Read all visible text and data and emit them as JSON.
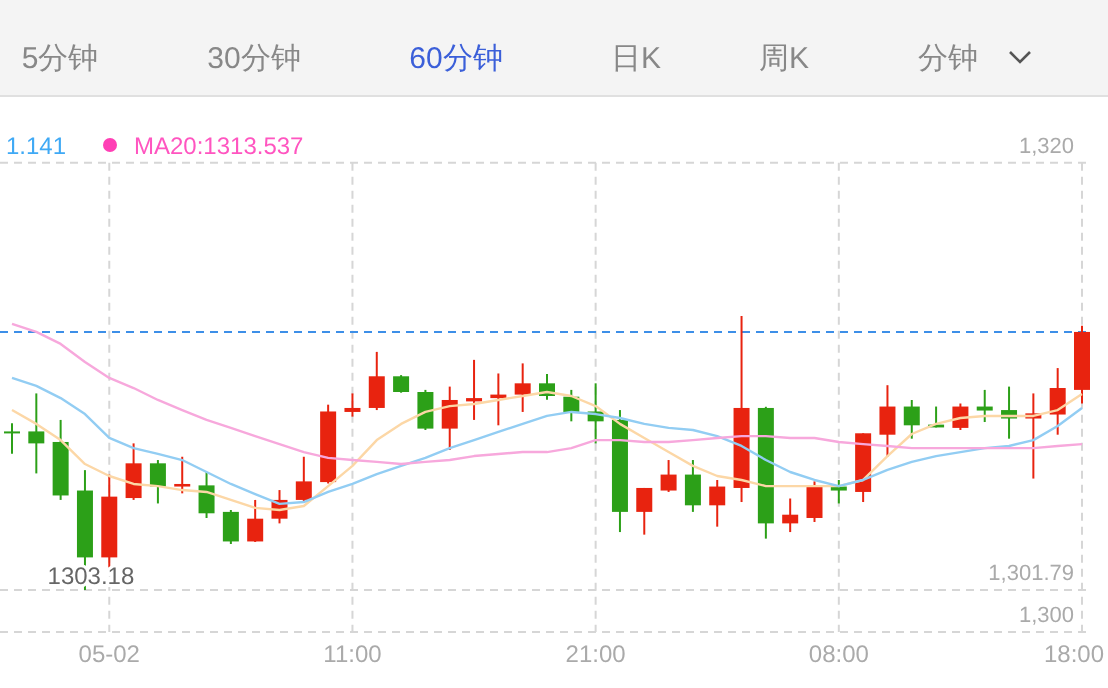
{
  "chart_data": {
    "type": "candlestick",
    "categories": [
      null,
      null,
      null,
      null,
      "05-02",
      null,
      null,
      null,
      null,
      null,
      null,
      null,
      null,
      null,
      "11:00",
      null,
      null,
      null,
      null,
      null,
      null,
      null,
      null,
      null,
      "21:00",
      null,
      null,
      null,
      null,
      null,
      null,
      null,
      null,
      null,
      "08:00",
      null,
      null,
      null,
      null,
      null,
      null,
      null,
      null,
      null,
      "18:00"
    ],
    "ohlc": [
      [
        1308.55,
        1308.9,
        1307.6,
        1308.5
      ],
      [
        1308.55,
        1310.17,
        1306.76,
        1308.04
      ],
      [
        1308.1,
        1309.04,
        1305.63,
        1305.82
      ],
      [
        1306.03,
        1306.9,
        1301.79,
        1303.18
      ],
      [
        1303.18,
        1306.71,
        1302.5,
        1305.77
      ],
      [
        1305.71,
        1308.04,
        1305.63,
        1307.19
      ],
      [
        1307.19,
        1307.33,
        1305.48,
        1306.2
      ],
      [
        1306.2,
        1307.47,
        1305.91,
        1306.31
      ],
      [
        1306.25,
        1306.82,
        1304.86,
        1305.06
      ],
      [
        1305.12,
        1305.2,
        1303.75,
        1303.86
      ],
      [
        1303.86,
        1305.63,
        1303.84,
        1304.83
      ],
      [
        1304.83,
        1306.05,
        1304.63,
        1305.63
      ],
      [
        1305.63,
        1307.47,
        1305.57,
        1306.42
      ],
      [
        1306.39,
        1309.69,
        1306.33,
        1309.4
      ],
      [
        1309.38,
        1310.17,
        1309.18,
        1309.55
      ],
      [
        1309.55,
        1311.94,
        1309.46,
        1310.9
      ],
      [
        1310.9,
        1310.95,
        1310.2,
        1310.23
      ],
      [
        1310.23,
        1310.32,
        1308.61,
        1308.67
      ],
      [
        1308.67,
        1310.46,
        1307.76,
        1309.89
      ],
      [
        1309.83,
        1311.6,
        1309.04,
        1309.97
      ],
      [
        1309.97,
        1311.02,
        1308.81,
        1310.12
      ],
      [
        1310.12,
        1311.45,
        1309.38,
        1310.6
      ],
      [
        1310.6,
        1311.0,
        1309.9,
        1310.06
      ],
      [
        1310.03,
        1310.32,
        1308.98,
        1309.38
      ],
      [
        1309.4,
        1310.6,
        1308.04,
        1308.98
      ],
      [
        1309.04,
        1309.46,
        1304.26,
        1305.12
      ],
      [
        1305.12,
        1306.14,
        1304.15,
        1306.14
      ],
      [
        1306.03,
        1307.33,
        1305.97,
        1306.71
      ],
      [
        1306.71,
        1307.33,
        1305.12,
        1305.4
      ],
      [
        1305.4,
        1306.48,
        1304.49,
        1306.2
      ],
      [
        1306.14,
        1313.47,
        1305.54,
        1309.55
      ],
      [
        1309.55,
        1309.6,
        1303.98,
        1304.63
      ],
      [
        1304.63,
        1305.69,
        1304.26,
        1305.0
      ],
      [
        1304.86,
        1306.42,
        1304.69,
        1306.2
      ],
      [
        1306.2,
        1306.48,
        1305.48,
        1306.03
      ],
      [
        1305.97,
        1308.47,
        1305.54,
        1308.47
      ],
      [
        1308.41,
        1310.52,
        1307.47,
        1309.61
      ],
      [
        1309.61,
        1309.89,
        1308.24,
        1308.81
      ],
      [
        1308.84,
        1309.61,
        1308.72,
        1308.72
      ],
      [
        1308.7,
        1309.74,
        1308.61,
        1309.61
      ],
      [
        1309.61,
        1310.32,
        1308.95,
        1309.44
      ],
      [
        1309.46,
        1310.46,
        1308.24,
        1309.1
      ],
      [
        1309.1,
        1310.17,
        1306.54,
        1309.32
      ],
      [
        1309.27,
        1311.25,
        1308.41,
        1310.4
      ],
      [
        1310.32,
        1313.05,
        1309.74,
        1312.79
      ]
    ],
    "series": [
      {
        "type": "line",
        "color": "#fcd7a6",
        "values": [
          1309.46,
          1308.87,
          1308.18,
          1307.16,
          1306.65,
          1306.31,
          1306.22,
          1306.05,
          1305.97,
          1305.63,
          1305.29,
          1305.2,
          1305.37,
          1306.22,
          1307.08,
          1308.18,
          1308.87,
          1309.38,
          1309.63,
          1309.72,
          1309.89,
          1310.06,
          1310.23,
          1310.06,
          1309.63,
          1308.87,
          1308.27,
          1307.67,
          1307.08,
          1306.65,
          1306.48,
          1306.22,
          1306.22,
          1306.22,
          1306.22,
          1306.48,
          1307.5,
          1308.44,
          1308.87,
          1309.12,
          1309.21,
          1309.21,
          1309.21,
          1309.46,
          1310.14
        ]
      },
      {
        "type": "line",
        "color": "#92cdf3",
        "values": [
          1310.83,
          1310.49,
          1309.97,
          1309.29,
          1308.27,
          1307.84,
          1307.59,
          1307.33,
          1306.82,
          1306.31,
          1305.88,
          1305.46,
          1305.54,
          1305.97,
          1306.31,
          1306.73,
          1307.08,
          1307.42,
          1307.84,
          1308.18,
          1308.53,
          1308.87,
          1309.21,
          1309.38,
          1309.29,
          1309.12,
          1308.87,
          1308.7,
          1308.61,
          1308.35,
          1307.93,
          1307.33,
          1306.82,
          1306.48,
          1306.22,
          1306.48,
          1306.91,
          1307.25,
          1307.5,
          1307.67,
          1307.84,
          1307.93,
          1308.18,
          1308.78,
          1309.55
        ]
      },
      {
        "type": "line",
        "color": "#f7a8dc",
        "values": [
          1313.13,
          1312.79,
          1312.28,
          1311.51,
          1310.83,
          1310.4,
          1309.89,
          1309.46,
          1309.04,
          1308.7,
          1308.35,
          1308.01,
          1307.67,
          1307.42,
          1307.33,
          1307.25,
          1307.16,
          1307.25,
          1307.33,
          1307.5,
          1307.59,
          1307.67,
          1307.67,
          1307.84,
          1308.18,
          1308.18,
          1308.1,
          1308.1,
          1308.18,
          1308.27,
          1308.35,
          1308.35,
          1308.27,
          1308.27,
          1308.1,
          1308.01,
          1307.93,
          1307.84,
          1307.84,
          1307.84,
          1307.84,
          1307.84,
          1307.84,
          1307.93,
          1308.01
        ]
      }
    ],
    "ylim": [
      1300,
      1320
    ],
    "yticks": [
      {
        "value": 1300,
        "label": "1,300"
      },
      {
        "value": 1301.79,
        "label": "1,301.79"
      },
      {
        "value": 1320,
        "label": "1,320"
      }
    ],
    "grid": true,
    "ref_lines": [
      {
        "axis": "y",
        "value": 1312.79,
        "color": "#3d8fe8",
        "line_style": "dashed"
      }
    ],
    "annotations": [
      "5分钟",
      "30分钟",
      "60分钟",
      "日K",
      "周K",
      "分钟",
      "1.141",
      "MA20:1313.537",
      "1303.18"
    ]
  }
}
